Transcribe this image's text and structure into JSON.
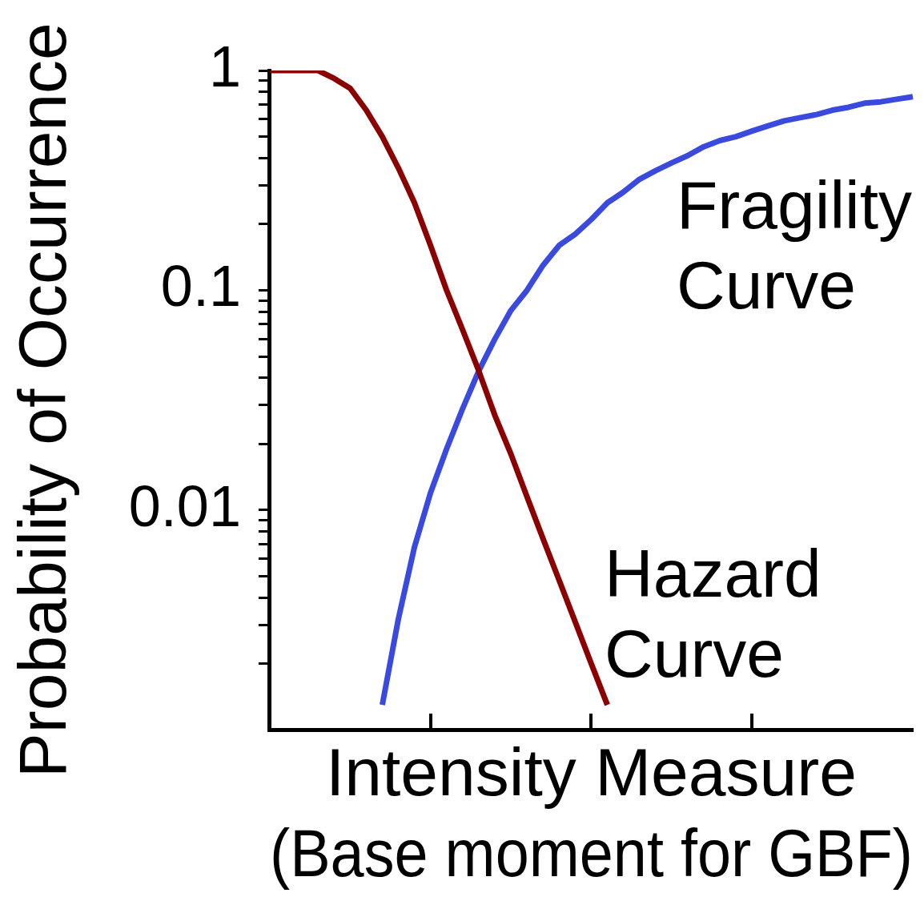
{
  "chart_data": {
    "type": "line",
    "xlabel": "Intensity Measure\n(Base moment for GBF)",
    "ylabel": "Probability of Occurrence",
    "log": "y",
    "grid": false,
    "legend": false,
    "marker": "none",
    "line_style": "solid",
    "tick_labels": "y",
    "categories": [
      null,
      null,
      null,
      null,
      null,
      null,
      null,
      null,
      null,
      null,
      null,
      null,
      null,
      null,
      null,
      null,
      null,
      null,
      null,
      null,
      null,
      null,
      null,
      null,
      null,
      null,
      null,
      null,
      null,
      null,
      null,
      null,
      null,
      null,
      null,
      null,
      null,
      null,
      null,
      null,
      null
    ],
    "ylim": [
      0.001,
      1
    ],
    "yticks": [
      {
        "value": 0.002,
        "label": null
      },
      {
        "value": 0.003,
        "label": null
      },
      {
        "value": 0.004,
        "label": null
      },
      {
        "value": 0.005,
        "label": null
      },
      {
        "value": 0.006,
        "label": null
      },
      {
        "value": 0.007,
        "label": null
      },
      {
        "value": 0.008,
        "label": null
      },
      {
        "value": 0.009,
        "label": null
      },
      0.01,
      {
        "value": 0.02,
        "label": null
      },
      {
        "value": 0.03,
        "label": null
      },
      {
        "value": 0.04,
        "label": null
      },
      {
        "value": 0.05,
        "label": null
      },
      {
        "value": 0.06,
        "label": null
      },
      {
        "value": 0.07,
        "label": null
      },
      {
        "value": 0.08,
        "label": null
      },
      {
        "value": 0.09,
        "label": null
      },
      0.1,
      {
        "value": 0.2,
        "label": null
      },
      {
        "value": 0.3,
        "label": null
      },
      {
        "value": 0.4,
        "label": null
      },
      {
        "value": 0.5,
        "label": null
      },
      {
        "value": 0.6,
        "label": null
      },
      {
        "value": 0.7,
        "label": null
      },
      {
        "value": 0.8,
        "label": null
      },
      {
        "value": 0.9,
        "label": null
      },
      1
    ],
    "series": [
      {
        "name": "Hazard Curve",
        "color": "#8b0000",
        "values": [
          1,
          1,
          1,
          1,
          0.92,
          0.83,
          0.66,
          0.5,
          0.36,
          0.25,
          0.16,
          0.1,
          0.066,
          0.043,
          0.027,
          0.018,
          0.0115,
          0.0074,
          0.0048,
          0.0031,
          0.002,
          0.0013,
          null,
          null,
          null,
          null,
          null,
          null,
          null,
          null,
          null,
          null,
          null,
          null,
          null,
          null,
          null,
          null,
          null,
          null,
          null
        ]
      },
      {
        "name": "Fragility Curve",
        "color": "#3b4ade",
        "values": [
          null,
          null,
          null,
          null,
          null,
          null,
          null,
          0.0013,
          0.0032,
          0.0068,
          0.012,
          0.019,
          0.029,
          0.043,
          0.06,
          0.081,
          0.1,
          0.13,
          0.16,
          0.18,
          0.21,
          0.25,
          0.28,
          0.32,
          0.35,
          0.38,
          0.41,
          0.45,
          0.48,
          0.5,
          0.53,
          0.56,
          0.59,
          0.61,
          0.63,
          0.66,
          0.68,
          0.71,
          0.72,
          0.74,
          0.76
        ]
      }
    ]
  }
}
